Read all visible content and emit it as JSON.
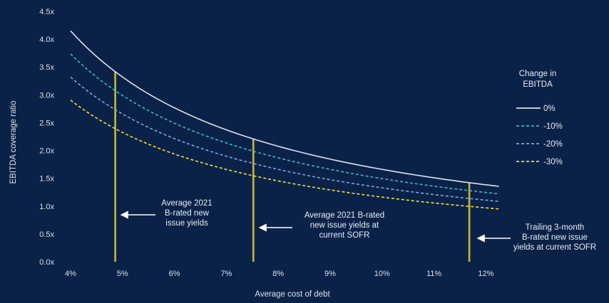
{
  "chart_data": {
    "type": "line",
    "title": "",
    "xlabel": "Average cost of debt",
    "ylabel": "EBITDA coverage ratio",
    "xlim": [
      4,
      12.3
    ],
    "ylim": [
      0,
      4.5
    ],
    "x_ticks": [
      {
        "value": 4,
        "label": "4%"
      },
      {
        "value": 5,
        "label": "5%"
      },
      {
        "value": 6,
        "label": "6%"
      },
      {
        "value": 7,
        "label": "7%"
      },
      {
        "value": 8,
        "label": "8%"
      },
      {
        "value": 9,
        "label": "9%"
      },
      {
        "value": 10,
        "label": "10%"
      },
      {
        "value": 11,
        "label": "11%"
      },
      {
        "value": 12,
        "label": "12%"
      }
    ],
    "y_ticks": [
      {
        "value": 0,
        "label": "0.0x"
      },
      {
        "value": 0.5,
        "label": "0.5x"
      },
      {
        "value": 1.0,
        "label": "1.0x"
      },
      {
        "value": 1.5,
        "label": "1.5x"
      },
      {
        "value": 2.0,
        "label": "2.0x"
      },
      {
        "value": 2.5,
        "label": "2.5x"
      },
      {
        "value": 3.0,
        "label": "3.0x"
      },
      {
        "value": 3.5,
        "label": "3.5x"
      },
      {
        "value": 4.0,
        "label": "4.0x"
      },
      {
        "value": 4.5,
        "label": "4.5x"
      }
    ],
    "legend_title": [
      "Change in",
      "EBITDA"
    ],
    "x_range": [
      4.0,
      12.25
    ],
    "series": [
      {
        "name": "0%",
        "numerator": 16.6,
        "color": "#dbe3ef",
        "dash": "solid"
      },
      {
        "name": "-10%",
        "numerator": 14.94,
        "color": "#3fb8c4",
        "dash": "dashed"
      },
      {
        "name": "-20%",
        "numerator": 13.28,
        "color": "#7aa8e6",
        "dash": "dashed"
      },
      {
        "name": "-30%",
        "numerator": 11.62,
        "color": "#f0e23c",
        "dash": "dashed"
      }
    ],
    "vertical_markers": [
      {
        "x": 4.86,
        "color": "#c8b82a",
        "label": [
          "Average 2021",
          "B-rated new",
          "issue yields"
        ]
      },
      {
        "x": 7.52,
        "color": "#c8b82a",
        "label": [
          "Average 2021 B-rated",
          "new issue yields at",
          "current SOFR"
        ]
      },
      {
        "x": 11.68,
        "color": "#c8b82a",
        "label": [
          "Trailing 3-month",
          "B-rated new issue",
          "yields at current SOFR"
        ]
      }
    ]
  }
}
